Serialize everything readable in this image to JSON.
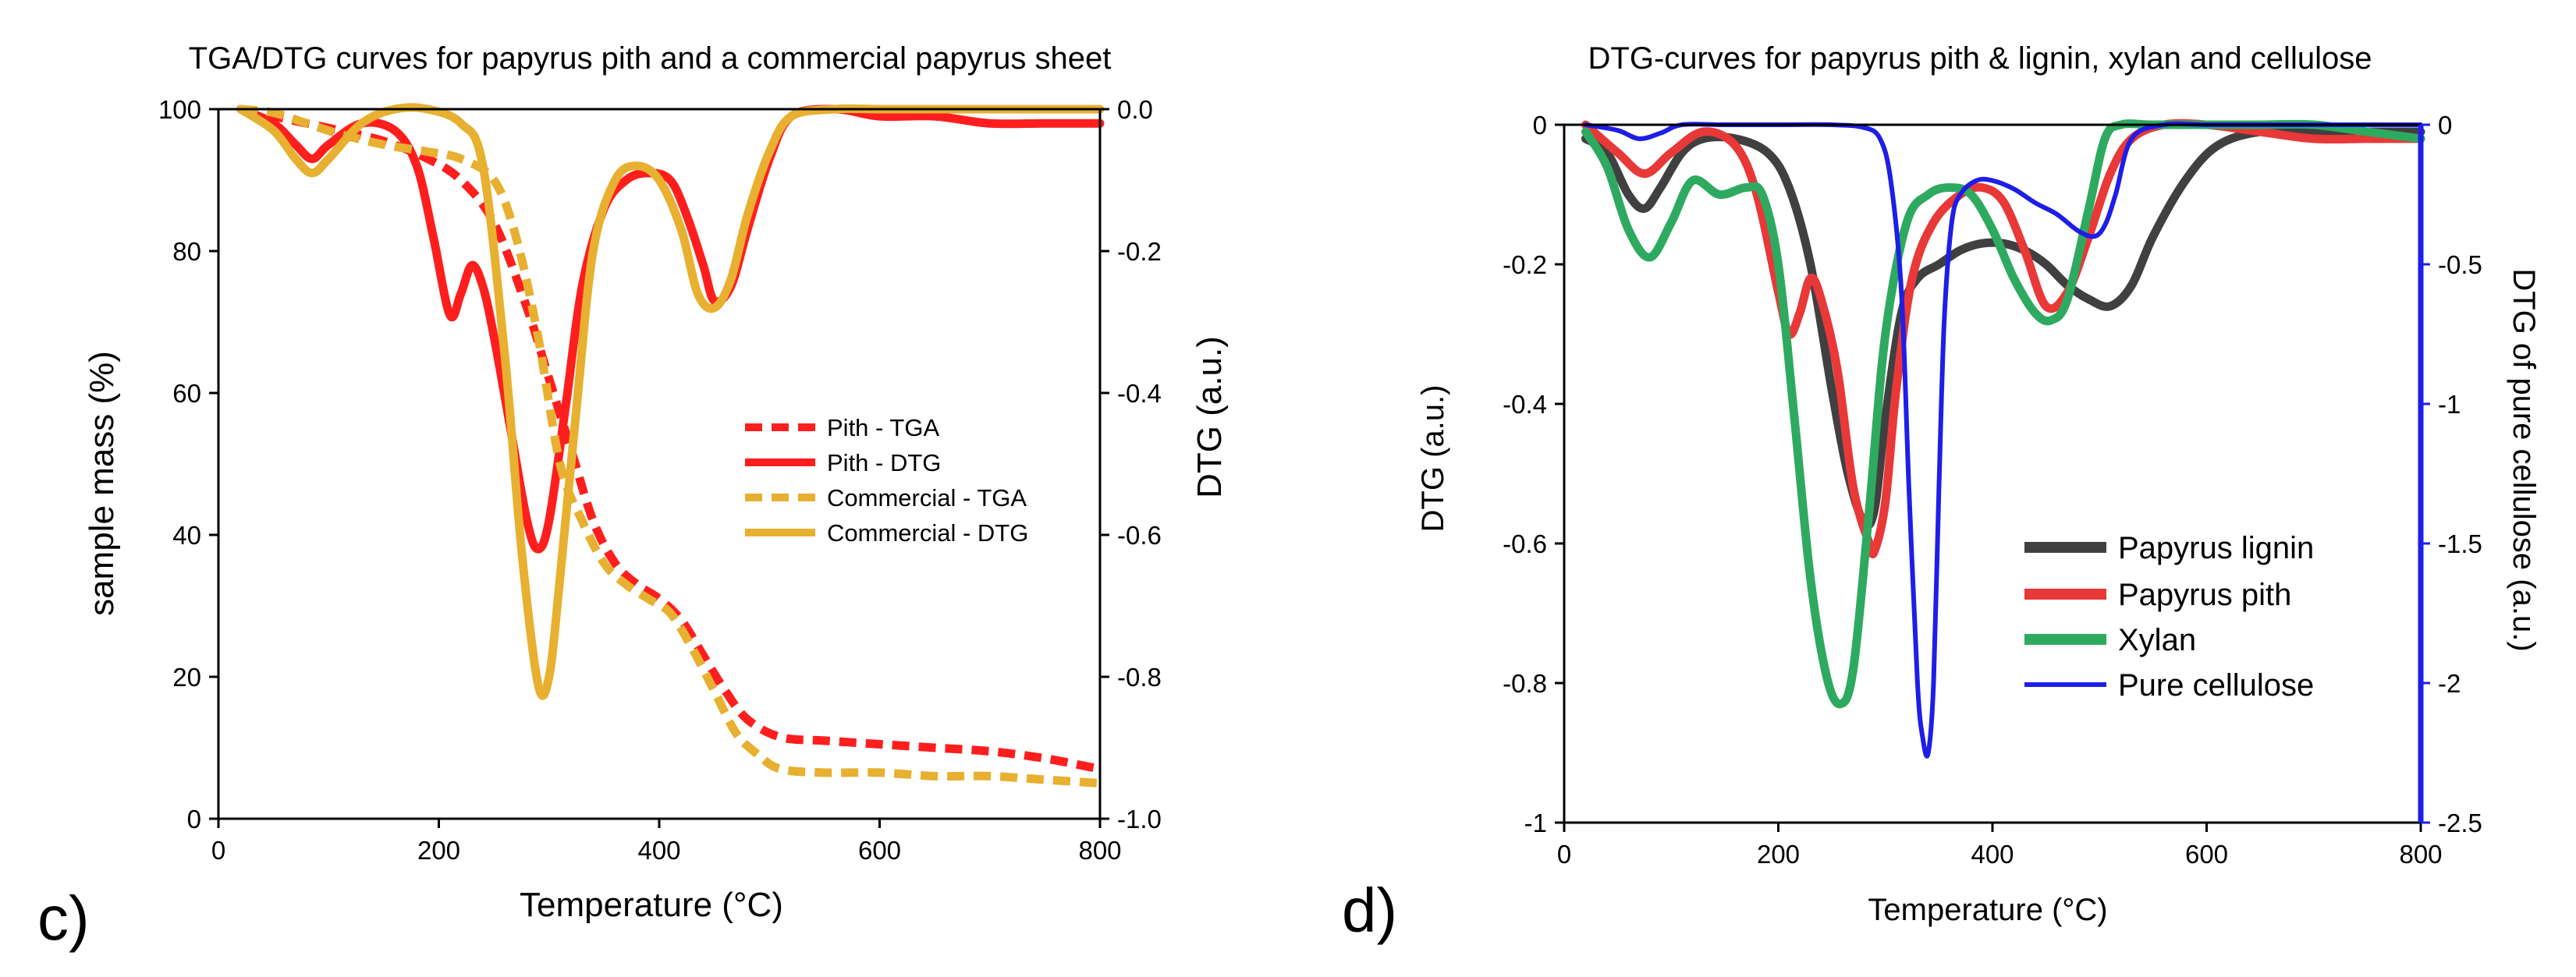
{
  "panel_c": {
    "label": "c)",
    "chart_data": {
      "type": "line",
      "title": "TGA/DTG curves for papyrus pith and a commercial papyrus sheet",
      "xlabel": "Temperature (°C)",
      "ylabel_left": "sample mass (%)",
      "ylabel_right": "DTG (a.u.)",
      "xlim": [
        0,
        800
      ],
      "ylim_left": [
        0,
        100
      ],
      "ylim_right": [
        -1.0,
        0.0
      ],
      "xticks": [
        0,
        200,
        400,
        600,
        800
      ],
      "xtick_labels": [
        "0",
        "200",
        "400",
        "600",
        "800"
      ],
      "yticks_left": [
        0,
        20,
        40,
        60,
        80,
        100
      ],
      "ytick_labels_left": [
        "0",
        "20",
        "40",
        "60",
        "80",
        "100"
      ],
      "yticks_right": [
        -1.0,
        -0.8,
        -0.6,
        -0.4,
        -0.2,
        0.0
      ],
      "ytick_labels_right": [
        "-1.0",
        "-0.8",
        "-0.6",
        "-0.4",
        "-0.2",
        "0.0"
      ],
      "legend_position": "center-right",
      "series": [
        {
          "name": "Pith - TGA",
          "axis": "left",
          "color": "#ff1e1e",
          "dash": true,
          "x": [
            20,
            50,
            80,
            110,
            150,
            190,
            220,
            250,
            280,
            300,
            320,
            340,
            360,
            380,
            400,
            420,
            440,
            460,
            480,
            510,
            550,
            600,
            650,
            700,
            750,
            800
          ],
          "y": [
            100,
            99,
            98,
            97,
            95.5,
            93,
            90,
            84,
            72,
            62,
            52,
            42,
            36,
            33,
            31,
            28,
            23,
            18,
            14,
            11.5,
            11,
            10.5,
            10,
            9.5,
            8.5,
            7
          ]
        },
        {
          "name": "Pith - DTG",
          "axis": "right",
          "color": "#ff1e1e",
          "dash": false,
          "x": [
            20,
            50,
            70,
            85,
            100,
            130,
            160,
            180,
            195,
            210,
            220,
            230,
            240,
            250,
            265,
            280,
            290,
            300,
            315,
            330,
            350,
            370,
            390,
            410,
            425,
            440,
            450,
            465,
            480,
            500,
            520,
            560,
            600,
            650,
            700,
            750,
            800
          ],
          "y": [
            0.0,
            -0.02,
            -0.05,
            -0.07,
            -0.05,
            -0.02,
            -0.03,
            -0.08,
            -0.18,
            -0.29,
            -0.26,
            -0.22,
            -0.25,
            -0.32,
            -0.45,
            -0.58,
            -0.62,
            -0.58,
            -0.42,
            -0.25,
            -0.14,
            -0.1,
            -0.09,
            -0.1,
            -0.15,
            -0.22,
            -0.27,
            -0.25,
            -0.17,
            -0.07,
            -0.01,
            0.0,
            -0.01,
            -0.01,
            -0.02,
            -0.02,
            -0.02
          ]
        },
        {
          "name": "Commercial - TGA",
          "axis": "left",
          "color": "#e8b030",
          "dash": true,
          "x": [
            20,
            50,
            80,
            110,
            150,
            190,
            220,
            250,
            270,
            290,
            310,
            330,
            350,
            370,
            390,
            410,
            430,
            450,
            470,
            490,
            510,
            550,
            600,
            650,
            700,
            750,
            800
          ],
          "y": [
            100,
            99.5,
            98,
            96.5,
            95,
            94,
            93,
            90,
            82,
            68,
            50,
            42,
            36,
            33,
            31,
            29,
            24,
            18,
            12,
            9,
            7,
            6.5,
            6.5,
            6,
            6,
            5.5,
            5
          ]
        },
        {
          "name": "Commercial - DTG",
          "axis": "right",
          "color": "#e8b030",
          "dash": false,
          "x": [
            20,
            50,
            70,
            85,
            100,
            130,
            160,
            190,
            220,
            240,
            260,
            275,
            290,
            300,
            310,
            325,
            340,
            360,
            380,
            400,
            420,
            435,
            450,
            465,
            480,
            500,
            520,
            560,
            600,
            650,
            700,
            750,
            800
          ],
          "y": [
            0.0,
            -0.03,
            -0.07,
            -0.09,
            -0.07,
            -0.02,
            0.0,
            0.0,
            -0.02,
            -0.08,
            -0.35,
            -0.62,
            -0.81,
            -0.8,
            -0.66,
            -0.42,
            -0.2,
            -0.1,
            -0.08,
            -0.1,
            -0.17,
            -0.26,
            -0.28,
            -0.24,
            -0.15,
            -0.06,
            -0.01,
            0.0,
            0.0,
            0.0,
            0.0,
            0.0,
            0.0
          ]
        }
      ]
    }
  },
  "panel_d": {
    "label": "d)",
    "chart_data": {
      "type": "line",
      "title": "DTG-curves for papyrus pith & lignin, xylan and cellulose",
      "xlabel": "Temperature (°C)",
      "ylabel_left": "DTG (a.u.)",
      "ylabel_right": "DTG of pure cellulose (a.u.)",
      "xlim": [
        0,
        800
      ],
      "ylim_left": [
        -1,
        0
      ],
      "ylim_right": [
        -2.5,
        0
      ],
      "xticks": [
        0,
        200,
        400,
        600,
        800
      ],
      "xtick_labels": [
        "0",
        "200",
        "400",
        "600",
        "800"
      ],
      "yticks_left": [
        -1,
        -0.8,
        -0.6,
        -0.4,
        -0.2,
        0
      ],
      "ytick_labels_left": [
        "-1",
        "-0.8",
        "-0.6",
        "-0.4",
        "-0.2",
        "0"
      ],
      "yticks_right": [
        -2.5,
        -2,
        -1.5,
        -1,
        -0.5,
        0
      ],
      "ytick_labels_right": [
        "-2.5",
        "-2",
        "-1.5",
        "-1",
        "-0.5",
        "0"
      ],
      "legend_position": "lower-right",
      "series": [
        {
          "name": "Papyrus lignin",
          "axis": "left",
          "color": "#404040",
          "width": 11,
          "x": [
            20,
            40,
            60,
            75,
            90,
            110,
            130,
            160,
            190,
            210,
            230,
            250,
            265,
            280,
            290,
            300,
            315,
            330,
            350,
            370,
            390,
            410,
            430,
            450,
            470,
            490,
            510,
            530,
            550,
            580,
            610,
            650,
            700,
            750,
            800
          ],
          "y": [
            -0.02,
            -0.04,
            -0.1,
            -0.12,
            -0.09,
            -0.04,
            -0.02,
            -0.02,
            -0.04,
            -0.09,
            -0.2,
            -0.38,
            -0.5,
            -0.57,
            -0.55,
            -0.42,
            -0.27,
            -0.22,
            -0.2,
            -0.18,
            -0.17,
            -0.17,
            -0.18,
            -0.2,
            -0.23,
            -0.25,
            -0.26,
            -0.23,
            -0.16,
            -0.08,
            -0.03,
            -0.01,
            -0.01,
            -0.01,
            -0.01
          ]
        },
        {
          "name": "Papyrus pith",
          "axis": "left",
          "color": "#e83838",
          "width": 11,
          "x": [
            20,
            50,
            75,
            100,
            130,
            160,
            180,
            200,
            210,
            220,
            230,
            240,
            255,
            270,
            285,
            290,
            300,
            310,
            325,
            345,
            370,
            390,
            410,
            430,
            450,
            470,
            490,
            510,
            530,
            560,
            600,
            650,
            700,
            750,
            800
          ],
          "y": [
            0.0,
            -0.04,
            -0.07,
            -0.04,
            -0.01,
            -0.03,
            -0.1,
            -0.24,
            -0.3,
            -0.27,
            -0.22,
            -0.25,
            -0.35,
            -0.52,
            -0.6,
            -0.61,
            -0.54,
            -0.38,
            -0.22,
            -0.14,
            -0.1,
            -0.09,
            -0.11,
            -0.18,
            -0.26,
            -0.24,
            -0.16,
            -0.07,
            -0.02,
            0.0,
            0.0,
            -0.01,
            -0.02,
            -0.02,
            -0.02
          ]
        },
        {
          "name": "Xylan",
          "axis": "left",
          "color": "#2eaa60",
          "width": 11,
          "x": [
            20,
            40,
            60,
            80,
            100,
            120,
            145,
            170,
            185,
            200,
            215,
            230,
            245,
            258,
            270,
            285,
            300,
            320,
            340,
            360,
            380,
            400,
            420,
            440,
            455,
            470,
            490,
            505,
            520,
            550,
            600,
            650,
            700,
            750,
            800
          ],
          "y": [
            -0.01,
            -0.06,
            -0.15,
            -0.19,
            -0.14,
            -0.08,
            -0.1,
            -0.09,
            -0.1,
            -0.2,
            -0.42,
            -0.65,
            -0.79,
            -0.83,
            -0.78,
            -0.55,
            -0.3,
            -0.14,
            -0.1,
            -0.09,
            -0.1,
            -0.15,
            -0.22,
            -0.27,
            -0.28,
            -0.25,
            -0.12,
            -0.02,
            0.0,
            0.0,
            0.0,
            0.0,
            0.0,
            -0.01,
            -0.02
          ]
        },
        {
          "name": "Pure cellulose",
          "axis": "right",
          "color": "#1e1ee8",
          "width": 6,
          "x": [
            20,
            50,
            70,
            90,
            110,
            150,
            200,
            250,
            280,
            295,
            305,
            315,
            322,
            330,
            335,
            340,
            345,
            350,
            355,
            362,
            370,
            385,
            400,
            420,
            440,
            460,
            480,
            495,
            505,
            515,
            530,
            560,
            600,
            650,
            700,
            750,
            800
          ],
          "y": [
            0.0,
            -0.02,
            -0.05,
            -0.03,
            0.0,
            0.0,
            0.0,
            0.0,
            -0.01,
            -0.05,
            -0.2,
            -0.6,
            -1.3,
            -2.0,
            -2.2,
            -2.25,
            -2.0,
            -1.3,
            -0.7,
            -0.35,
            -0.25,
            -0.2,
            -0.2,
            -0.23,
            -0.28,
            -0.32,
            -0.38,
            -0.4,
            -0.36,
            -0.25,
            -0.05,
            0.0,
            0.0,
            0.0,
            0.0,
            0.0,
            0.0
          ]
        }
      ]
    }
  }
}
